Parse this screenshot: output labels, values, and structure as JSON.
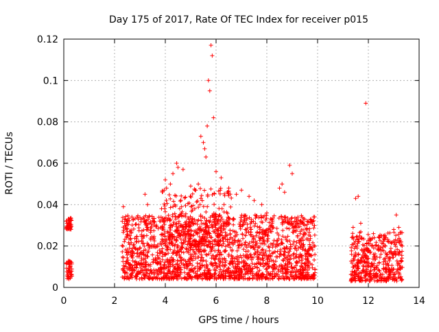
{
  "chart_data": {
    "type": "scatter",
    "title": "Day 175 of 2017, Rate Of TEC Index for receiver p015",
    "xlabel": "GPS time / hours",
    "ylabel": "ROTI / TECUs",
    "xlim": [
      0,
      14
    ],
    "ylim": [
      0,
      0.12
    ],
    "xticks": [
      0,
      2,
      4,
      6,
      8,
      10,
      12,
      14
    ],
    "xtick_labels": [
      "0",
      "2",
      "4",
      "6",
      "8",
      "10",
      "12",
      "14"
    ],
    "yticks": [
      0,
      0.02,
      0.04,
      0.06,
      0.08,
      0.1,
      0.12
    ],
    "ytick_labels": [
      "0",
      "0.02",
      "0.04",
      "0.06",
      "0.08",
      "0.1",
      "0.12"
    ],
    "grid": true,
    "marker": "+",
    "marker_color": "#ff0000",
    "series": [
      {
        "name": "ROTI",
        "x": [
          0.2,
          0.22,
          0.25,
          0.18,
          0.21,
          0.23,
          0.2,
          0.24,
          0.19,
          0.22,
          0.25,
          0.21,
          2.35,
          2.4,
          2.45,
          2.5,
          3.2,
          3.3,
          4.0,
          4.05,
          4.2,
          4.3,
          4.45,
          4.5,
          4.7,
          5.0,
          5.2,
          5.3,
          5.4,
          5.5,
          5.55,
          5.6,
          5.65,
          5.7,
          5.75,
          5.8,
          5.85,
          5.9,
          6.0,
          6.2,
          6.5,
          6.8,
          7.0,
          7.3,
          7.5,
          7.8,
          8.0,
          8.5,
          8.6,
          8.7,
          8.9,
          9.0,
          9.2,
          9.5,
          9.8,
          11.4,
          11.5,
          11.6,
          11.7,
          11.9,
          12.2,
          12.5,
          12.8,
          13.0,
          13.1,
          13.2
        ],
        "y": [
          0.033,
          0.031,
          0.029,
          0.012,
          0.009,
          0.007,
          0.005,
          0.01,
          0.03,
          0.032,
          0.008,
          0.011,
          0.039,
          0.033,
          0.03,
          0.027,
          0.045,
          0.04,
          0.052,
          0.048,
          0.05,
          0.055,
          0.06,
          0.058,
          0.057,
          0.049,
          0.047,
          0.05,
          0.073,
          0.07,
          0.067,
          0.063,
          0.078,
          0.1,
          0.095,
          0.117,
          0.112,
          0.082,
          0.056,
          0.053,
          0.048,
          0.045,
          0.047,
          0.044,
          0.042,
          0.04,
          0.036,
          0.048,
          0.05,
          0.046,
          0.059,
          0.055,
          0.031,
          0.03,
          0.032,
          0.029,
          0.043,
          0.044,
          0.031,
          0.089,
          0.026,
          0.018,
          0.022,
          0.028,
          0.035,
          0.029
        ],
        "dense_bands": [
          {
            "x_range": [
              0.1,
              0.32
            ],
            "y_range": [
              0.004,
              0.013
            ]
          },
          {
            "x_range": [
              0.1,
              0.32
            ],
            "y_range": [
              0.028,
              0.034
            ]
          },
          {
            "x_range": [
              2.3,
              9.9
            ],
            "y_range": [
              0.004,
              0.035
            ]
          },
          {
            "x_range": [
              11.3,
              13.35
            ],
            "y_range": [
              0.003,
              0.027
            ]
          }
        ]
      }
    ]
  }
}
